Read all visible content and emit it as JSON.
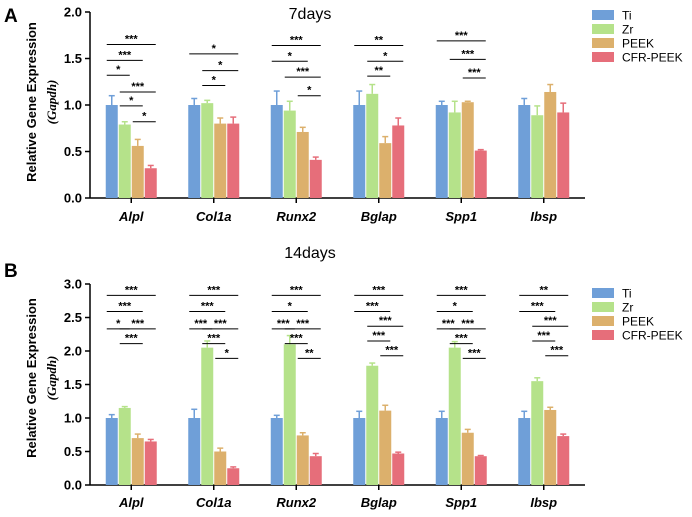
{
  "chart_data": [
    {
      "type": "bar",
      "panel": "A",
      "title": "7days",
      "ylabel": "Relative  Gene Expression",
      "ylabel_sub": "(Gapdh)",
      "ylim": [
        0,
        2.0
      ],
      "yticks": [
        "0.0",
        "0.5",
        "1.0",
        "1.5",
        "2.0"
      ],
      "categories": [
        "Alpl",
        "Col1a",
        "Runx2",
        "Bglap",
        "Spp1",
        "Ibsp"
      ],
      "legend_position": "top-right",
      "series": [
        {
          "name": "Ti",
          "color": "#6f9fd8",
          "values": [
            1.0,
            1.0,
            1.0,
            1.0,
            1.0,
            1.0
          ],
          "errors": [
            0.1,
            0.07,
            0.15,
            0.15,
            0.04,
            0.07
          ]
        },
        {
          "name": "Zr",
          "color": "#b5e28a",
          "values": [
            0.79,
            1.02,
            0.94,
            1.12,
            0.92,
            0.89
          ],
          "errors": [
            0.03,
            0.03,
            0.1,
            0.1,
            0.12,
            0.1
          ]
        },
        {
          "name": "PEEK",
          "color": "#dcb06c",
          "values": [
            0.56,
            0.8,
            0.71,
            0.59,
            1.03,
            1.14
          ],
          "errors": [
            0.07,
            0.06,
            0.05,
            0.07,
            0.01,
            0.08
          ]
        },
        {
          "name": "CFR-PEEK",
          "color": "#e66e7a",
          "values": [
            0.32,
            0.8,
            0.41,
            0.78,
            0.51,
            0.92
          ],
          "errors": [
            0.03,
            0.07,
            0.03,
            0.08,
            0.01,
            0.1
          ]
        }
      ],
      "significance": [
        [
          {
            "from": 0,
            "to": 3,
            "label": "***",
            "y": 1.65
          },
          {
            "from": 0,
            "to": 2,
            "label": "***",
            "y": 1.48
          },
          {
            "from": 0,
            "to": 1,
            "label": "*",
            "y": 1.32
          },
          {
            "from": 1,
            "to": 3,
            "label": "***",
            "y": 1.14
          },
          {
            "from": 1,
            "to": 2,
            "label": "*",
            "y": 0.99
          },
          {
            "from": 2,
            "to": 3,
            "label": "*",
            "y": 0.82
          }
        ],
        [
          {
            "from": 0,
            "to": 3,
            "label": "*",
            "y": 1.55
          },
          {
            "from": 1,
            "to": 3,
            "label": "*",
            "y": 1.37
          },
          {
            "from": 1,
            "to": 2,
            "label": "*",
            "y": 1.21
          }
        ],
        [
          {
            "from": 0,
            "to": 3,
            "label": "***",
            "y": 1.64
          },
          {
            "from": 0,
            "to": 2,
            "label": "*",
            "y": 1.47
          },
          {
            "from": 1,
            "to": 3,
            "label": "***",
            "y": 1.3
          },
          {
            "from": 2,
            "to": 3,
            "label": "*",
            "y": 1.1
          }
        ],
        [
          {
            "from": 0,
            "to": 3,
            "label": "**",
            "y": 1.64
          },
          {
            "from": 1,
            "to": 3,
            "label": "*",
            "y": 1.47
          },
          {
            "from": 1,
            "to": 2,
            "label": "**",
            "y": 1.31
          }
        ],
        [
          {
            "from": 0,
            "to": 3,
            "label": "***",
            "y": 1.69
          },
          {
            "from": 1,
            "to": 3,
            "label": "***",
            "y": 1.49
          },
          {
            "from": 2,
            "to": 3,
            "label": "***",
            "y": 1.29
          }
        ],
        []
      ]
    },
    {
      "type": "bar",
      "panel": "B",
      "title": "14days",
      "ylabel": "Relative  Gene Expression",
      "ylabel_sub": "(Gapdh)",
      "ylim": [
        0,
        3.0
      ],
      "yticks": [
        "0.0",
        "0.5",
        "1.0",
        "1.5",
        "2.0",
        "2.5",
        "3.0"
      ],
      "categories": [
        "Alpl",
        "Col1a",
        "Runx2",
        "Bglap",
        "Spp1",
        "Ibsp"
      ],
      "legend_position": "top-right",
      "series": [
        {
          "name": "Ti",
          "color": "#6f9fd8",
          "values": [
            1.0,
            1.0,
            1.0,
            1.0,
            1.0,
            1.0
          ],
          "errors": [
            0.05,
            0.13,
            0.04,
            0.1,
            0.1,
            0.1
          ]
        },
        {
          "name": "Zr",
          "color": "#b5e28a",
          "values": [
            1.15,
            2.05,
            2.1,
            1.78,
            2.05,
            1.55
          ],
          "errors": [
            0.02,
            0.1,
            0.13,
            0.04,
            0.09,
            0.05
          ]
        },
        {
          "name": "PEEK",
          "color": "#dcb06c",
          "values": [
            0.7,
            0.5,
            0.74,
            1.11,
            0.78,
            1.12
          ],
          "errors": [
            0.06,
            0.05,
            0.04,
            0.08,
            0.05,
            0.04
          ]
        },
        {
          "name": "CFR-PEEK",
          "color": "#e66e7a",
          "values": [
            0.65,
            0.25,
            0.43,
            0.47,
            0.43,
            0.73
          ],
          "errors": [
            0.03,
            0.02,
            0.04,
            0.02,
            0.01,
            0.03
          ]
        }
      ],
      "significance": [
        [
          {
            "from": 0,
            "to": 3,
            "label": "***",
            "y": 2.83
          },
          {
            "from": 0,
            "to": 2,
            "label": "***",
            "y": 2.59
          },
          {
            "from": 0,
            "to": 1,
            "label": "*",
            "y": 2.33
          },
          {
            "from": 1,
            "to": 3,
            "label": "***",
            "y": 2.33
          },
          {
            "from": 1,
            "to": 2,
            "label": "***",
            "y": 2.11
          }
        ],
        [
          {
            "from": 0,
            "to": 3,
            "label": "***",
            "y": 2.83
          },
          {
            "from": 0,
            "to": 2,
            "label": "***",
            "y": 2.59
          },
          {
            "from": 0,
            "to": 1,
            "label": "***",
            "y": 2.33
          },
          {
            "from": 1,
            "to": 3,
            "label": "***",
            "y": 2.33
          },
          {
            "from": 1,
            "to": 2,
            "label": "***",
            "y": 2.11
          },
          {
            "from": 2,
            "to": 3,
            "label": "*",
            "y": 1.89
          }
        ],
        [
          {
            "from": 0,
            "to": 3,
            "label": "***",
            "y": 2.83
          },
          {
            "from": 0,
            "to": 2,
            "label": "*",
            "y": 2.59
          },
          {
            "from": 0,
            "to": 1,
            "label": "***",
            "y": 2.33
          },
          {
            "from": 1,
            "to": 3,
            "label": "***",
            "y": 2.33
          },
          {
            "from": 1,
            "to": 2,
            "label": "***",
            "y": 2.11
          },
          {
            "from": 2,
            "to": 3,
            "label": "**",
            "y": 1.89
          }
        ],
        [
          {
            "from": 0,
            "to": 3,
            "label": "***",
            "y": 2.83
          },
          {
            "from": 0,
            "to": 2,
            "label": "***",
            "y": 2.59
          },
          {
            "from": 1,
            "to": 3,
            "label": "***",
            "y": 2.37
          },
          {
            "from": 1,
            "to": 2,
            "label": "***",
            "y": 2.15
          },
          {
            "from": 2,
            "to": 3,
            "label": "***",
            "y": 1.93
          }
        ],
        [
          {
            "from": 0,
            "to": 3,
            "label": "***",
            "y": 2.83
          },
          {
            "from": 0,
            "to": 2,
            "label": "*",
            "y": 2.59
          },
          {
            "from": 0,
            "to": 1,
            "label": "***",
            "y": 2.33
          },
          {
            "from": 1,
            "to": 3,
            "label": "***",
            "y": 2.33
          },
          {
            "from": 1,
            "to": 2,
            "label": "***",
            "y": 2.11
          },
          {
            "from": 2,
            "to": 3,
            "label": "***",
            "y": 1.89
          }
        ],
        [
          {
            "from": 0,
            "to": 3,
            "label": "**",
            "y": 2.83
          },
          {
            "from": 0,
            "to": 2,
            "label": "***",
            "y": 2.59
          },
          {
            "from": 1,
            "to": 3,
            "label": "***",
            "y": 2.37
          },
          {
            "from": 1,
            "to": 2,
            "label": "***",
            "y": 2.15
          },
          {
            "from": 2,
            "to": 3,
            "label": "***",
            "y": 1.93
          }
        ]
      ]
    }
  ]
}
